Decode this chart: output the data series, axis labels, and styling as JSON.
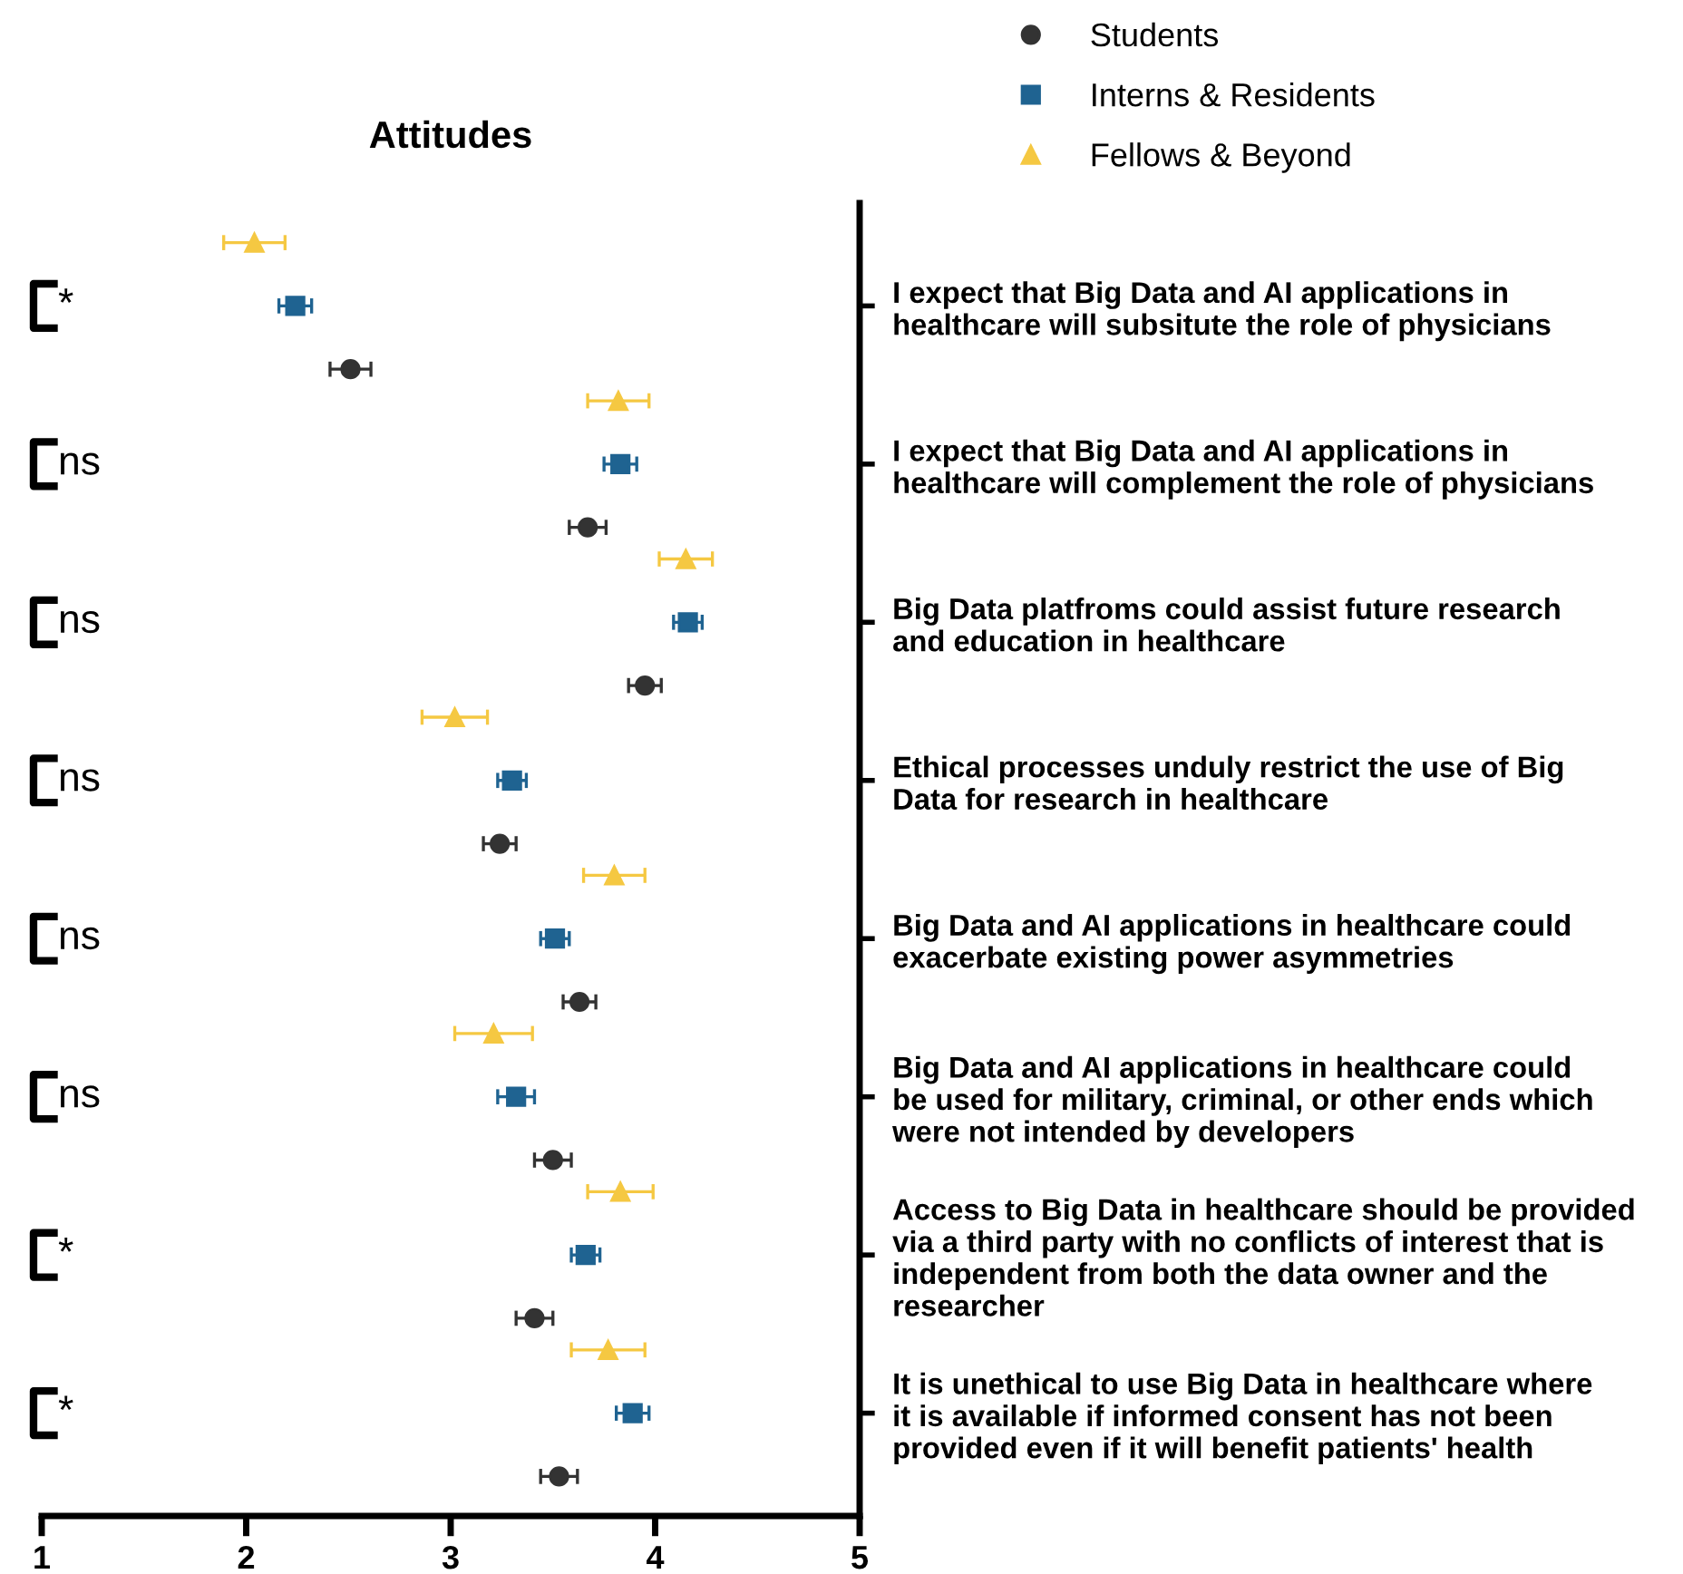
{
  "chart_data": {
    "type": "scatter",
    "orientation": "horizontal",
    "title": "Attitudes",
    "categories": [
      "I expect that Big Data and AI applications in\nhealthcare will subsitute the role of physicians",
      "I expect that Big Data and AI applications in\nhealthcare will complement the role of physicians",
      "Big Data platfroms could assist future research\nand education in healthcare",
      "Ethical processes unduly restrict the use of Big\nData for research in healthcare",
      "Big Data and AI applications in healthcare could\nexacerbate existing power asymmetries",
      "Big Data and AI applications in healthcare could\nbe used for military, criminal, or other ends which\nwere not intended by developers",
      "Access to Big Data in healthcare should be provided\nvia a third party with no conflicts of interest that is\nindependent from both the data owner and the\nresearcher",
      "It is unethical to use Big Data in healthcare where\nit is available if informed consent has not been\nprovided even if it will benefit patients' health"
    ],
    "series": [
      {
        "name": "Students",
        "color": "#333333",
        "marker": "circle",
        "values": [
          2.51,
          3.67,
          3.95,
          3.24,
          3.63,
          3.5,
          3.41,
          3.53
        ],
        "errors": [
          0.1,
          0.09,
          0.08,
          0.08,
          0.08,
          0.09,
          0.09,
          0.09
        ]
      },
      {
        "name": "Interns & Residents",
        "color": "#1f6391",
        "marker": "square",
        "values": [
          2.24,
          3.83,
          4.16,
          3.3,
          3.51,
          3.32,
          3.66,
          3.89
        ],
        "errors": [
          0.08,
          0.08,
          0.07,
          0.07,
          0.07,
          0.09,
          0.07,
          0.08
        ]
      },
      {
        "name": "Fellows & Beyond",
        "color": "#f5c842",
        "marker": "triangle",
        "values": [
          2.04,
          3.82,
          4.15,
          3.02,
          3.8,
          3.21,
          3.83,
          3.77
        ],
        "errors": [
          0.15,
          0.15,
          0.13,
          0.16,
          0.15,
          0.19,
          0.16,
          0.18
        ]
      }
    ],
    "xlim": [
      1,
      5
    ],
    "xticks": [
      1,
      2,
      3,
      4,
      5
    ],
    "grid": false,
    "legend": "top",
    "annotations": [
      "*",
      "ns",
      "ns",
      "ns",
      "ns",
      "ns",
      "*",
      "*"
    ]
  }
}
